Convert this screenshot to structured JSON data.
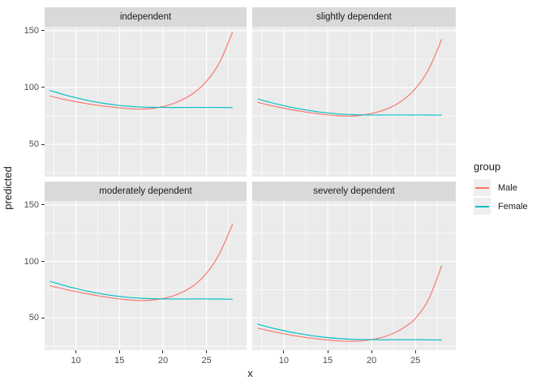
{
  "legend": {
    "title": "group",
    "entries": [
      {
        "label": "Male",
        "color": "#F8766D"
      },
      {
        "label": "Female",
        "color": "#00BFC4"
      }
    ]
  },
  "chart_data": {
    "type": "line",
    "xlabel": "x",
    "ylabel": "predicted",
    "xlim": [
      6.4,
      29.6
    ],
    "ylim": [
      21.5,
      153.5
    ],
    "x_major_ticks": [
      10,
      15,
      20,
      25
    ],
    "x_minor_ticks": [
      7.5,
      12.5,
      17.5,
      22.5,
      27.5
    ],
    "y_major_ticks": [
      50,
      100,
      150
    ],
    "y_minor_ticks": [
      25,
      75,
      125
    ],
    "grid": true,
    "legend_position": "right",
    "panel_background": "#EBEBEB",
    "x": [
      7,
      8.5,
      10,
      11.5,
      13,
      14.5,
      16,
      17.5,
      19,
      20.5,
      22,
      23.5,
      25,
      26.5,
      28
    ],
    "facets": [
      {
        "title": "independent",
        "series": [
          {
            "name": "Male",
            "color": "#F8766D",
            "y": [
              92.5,
              89.8,
              87.5,
              85.5,
              83.8,
              82.5,
              81.5,
              81.0,
              81.8,
              84.2,
              88.5,
              95.0,
              105.5,
              122.0,
              149.0
            ]
          },
          {
            "name": "Female",
            "color": "#00BFC4",
            "y": [
              97.5,
              94.0,
              91.0,
              88.4,
              86.3,
              84.7,
              83.5,
              82.8,
              82.5,
              82.4,
              82.4,
              82.4,
              82.4,
              82.4,
              82.3
            ]
          }
        ]
      },
      {
        "title": "slightly dependent",
        "series": [
          {
            "name": "Male",
            "color": "#F8766D",
            "y": [
              87.0,
              84.2,
              81.8,
              79.6,
              77.8,
              76.3,
              75.3,
              74.9,
              75.7,
              78.0,
              82.0,
              88.5,
              99.0,
              116.0,
              142.5
            ]
          },
          {
            "name": "Female",
            "color": "#00BFC4",
            "y": [
              90.0,
              86.8,
              84.0,
              81.6,
              79.6,
              78.0,
              76.9,
              76.2,
              75.9,
              75.8,
              75.8,
              75.8,
              75.8,
              75.7,
              75.7
            ]
          }
        ]
      },
      {
        "title": "moderately dependent",
        "series": [
          {
            "name": "Male",
            "color": "#F8766D",
            "y": [
              78.5,
              75.8,
              73.3,
              71.0,
              69.0,
              67.3,
              66.0,
              65.3,
              66.0,
              68.0,
              72.0,
              78.5,
              89.5,
              107.0,
              133.0
            ]
          },
          {
            "name": "Female",
            "color": "#00BFC4",
            "y": [
              82.5,
              79.0,
              76.0,
              73.4,
              71.2,
              69.5,
              68.2,
              67.4,
              67.0,
              66.8,
              66.8,
              66.8,
              66.8,
              66.7,
              66.5
            ]
          }
        ]
      },
      {
        "title": "severely dependent",
        "series": [
          {
            "name": "Male",
            "color": "#F8766D",
            "y": [
              41.0,
              38.4,
              36.0,
              33.9,
              32.2,
              30.8,
              29.8,
              29.3,
              29.8,
              31.5,
              34.8,
              40.5,
              49.5,
              66.5,
              96.5
            ]
          },
          {
            "name": "Female",
            "color": "#00BFC4",
            "y": [
              44.5,
              41.4,
              38.7,
              36.4,
              34.5,
              33.0,
              31.9,
              31.2,
              30.9,
              30.7,
              30.7,
              30.7,
              30.7,
              30.6,
              30.5
            ]
          }
        ]
      }
    ]
  }
}
